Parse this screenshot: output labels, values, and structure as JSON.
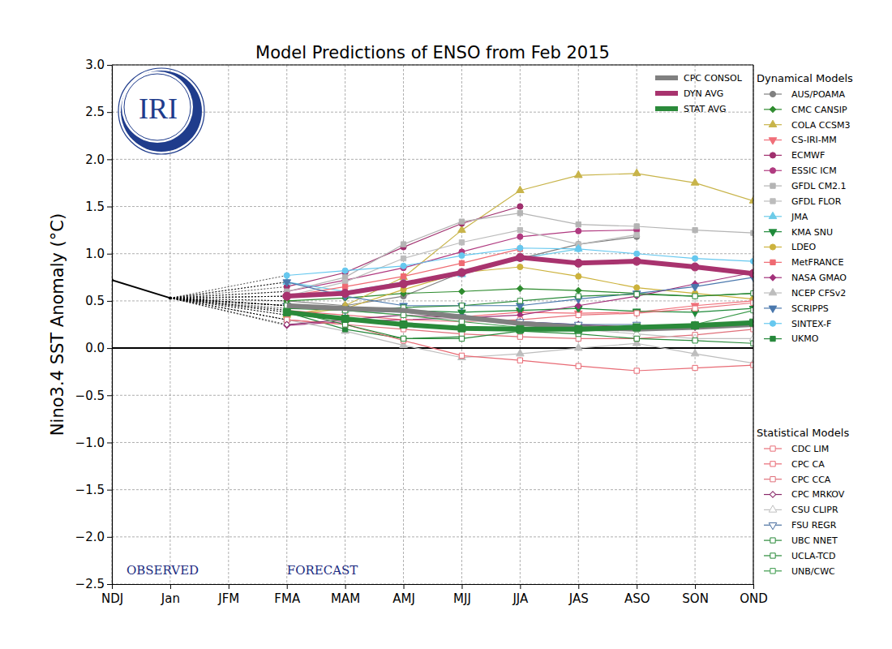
{
  "chart_data": {
    "type": "line",
    "title": "Model Predictions of ENSO from Feb 2015",
    "y_label": "Nino3.4 SST Anomaly (°C)",
    "logo_text": "IRI",
    "annotations": [
      {
        "text": "OBSERVED"
      },
      {
        "text": "FORECAST"
      }
    ],
    "categories": [
      "NDJ",
      "Jan",
      "JFM",
      "FMA",
      "MAM",
      "AMJ",
      "MJJ",
      "JJA",
      "JAS",
      "ASO",
      "SON",
      "OND"
    ],
    "ylim": [
      -2.5,
      3.0
    ],
    "yticks": [
      {
        "value": -2.5,
        "label": "−2.5"
      },
      {
        "value": -2.0,
        "label": "−2.0"
      },
      {
        "value": -1.5,
        "label": "−1.5"
      },
      {
        "value": -1.0,
        "label": "−1.0"
      },
      {
        "value": -0.5,
        "label": "−0.5"
      },
      {
        "value": 0,
        "label": "0.0"
      },
      {
        "value": 0.5,
        "label": "0.5"
      },
      {
        "value": 1.0,
        "label": "1.0"
      },
      {
        "value": 1.5,
        "label": "1.5"
      },
      {
        "value": 2.0,
        "label": "2.0"
      },
      {
        "value": 2.5,
        "label": "2.5"
      },
      {
        "value": 3.0,
        "label": "3.0"
      }
    ],
    "grid": true,
    "reference_line": 0,
    "observed": [
      0.72,
      0.53,
      null,
      null,
      null,
      null,
      null,
      null,
      null,
      null,
      null,
      null
    ],
    "series": [
      {
        "name": "CPC CONSOL",
        "color": "#808080",
        "marker": "none",
        "line_style": "bold",
        "values": [
          null,
          null,
          null,
          0.45,
          0.42,
          0.4,
          0.33,
          0.26,
          0.22,
          0.2,
          0.22,
          0.25
        ]
      },
      {
        "name": "DYN AVG",
        "color": "#a8336e",
        "marker": "circle",
        "line_style": "bold",
        "values": [
          null,
          null,
          null,
          0.55,
          0.58,
          0.68,
          0.8,
          0.96,
          0.9,
          0.92,
          0.86,
          0.79
        ]
      },
      {
        "name": "STAT AVG",
        "color": "#2a8a3a",
        "marker": "square",
        "line_style": "bold",
        "values": [
          null,
          null,
          null,
          0.38,
          0.31,
          0.25,
          0.21,
          0.2,
          0.2,
          0.22,
          0.24,
          0.27
        ]
      },
      {
        "name": "AUS/POAMA",
        "group": "Dynamical Models",
        "color": "#808080",
        "marker": "circle",
        "line_style": "solid",
        "values": [
          null,
          null,
          null,
          0.5,
          0.45,
          0.55,
          0.8,
          0.95,
          1.1,
          1.18,
          null,
          null
        ]
      },
      {
        "name": "CMC CANSIP",
        "group": "Dynamical Models",
        "color": "#2e8b2e",
        "marker": "diamond",
        "line_style": "solid",
        "values": [
          null,
          null,
          null,
          0.5,
          0.53,
          0.58,
          0.6,
          0.63,
          0.61,
          0.58,
          0.55,
          0.58
        ]
      },
      {
        "name": "COLA CCSM3",
        "group": "Dynamical Models",
        "color": "#c8b44a",
        "marker": "triangle-up",
        "line_style": "solid",
        "values": [
          null,
          null,
          null,
          0.35,
          0.45,
          0.75,
          1.25,
          1.67,
          1.83,
          1.85,
          1.75,
          1.56
        ]
      },
      {
        "name": "CS-IRI-MM",
        "group": "Dynamical Models",
        "color": "#f06e78",
        "marker": "triangle-down",
        "line_style": "solid",
        "values": [
          null,
          null,
          null,
          0.45,
          0.42,
          0.38,
          0.33,
          0.38,
          0.37,
          0.38,
          0.45,
          0.5
        ]
      },
      {
        "name": "ECMWF",
        "group": "Dynamical Models",
        "color": "#a0306e",
        "marker": "circle",
        "line_style": "solid",
        "values": [
          null,
          null,
          null,
          0.65,
          0.8,
          1.07,
          1.32,
          1.5,
          null,
          null,
          null,
          null
        ]
      },
      {
        "name": "ESSIC ICM",
        "group": "Dynamical Models",
        "color": "#b03a80",
        "marker": "circle",
        "line_style": "solid",
        "values": [
          null,
          null,
          null,
          0.6,
          0.72,
          0.85,
          1.02,
          1.18,
          1.24,
          1.25,
          null,
          null
        ]
      },
      {
        "name": "GFDL CM2.1",
        "group": "Dynamical Models",
        "color": "#b4b4b4",
        "marker": "square",
        "line_style": "solid",
        "values": [
          null,
          null,
          null,
          0.6,
          0.75,
          1.1,
          1.34,
          1.43,
          1.31,
          1.29,
          1.25,
          1.22
        ]
      },
      {
        "name": "GFDL FLOR",
        "group": "Dynamical Models",
        "color": "#bcbcbc",
        "marker": "square",
        "line_style": "solid",
        "values": [
          null,
          null,
          null,
          0.55,
          0.7,
          0.95,
          1.12,
          1.25,
          1.1,
          1.2,
          null,
          null
        ]
      },
      {
        "name": "JMA",
        "group": "Dynamical Models",
        "color": "#6ccbe8",
        "marker": "triangle-up",
        "line_style": "solid",
        "values": [
          null,
          null,
          null,
          0.7,
          0.6,
          0.7,
          0.78,
          0.95,
          1.05,
          null,
          null,
          null
        ]
      },
      {
        "name": "KMA SNU",
        "group": "Dynamical Models",
        "color": "#1f8a3a",
        "marker": "triangle-down",
        "line_style": "solid",
        "values": [
          null,
          null,
          null,
          0.45,
          0.42,
          0.4,
          0.38,
          0.4,
          0.42,
          0.39,
          0.38,
          0.42
        ]
      },
      {
        "name": "LDEO",
        "group": "Dynamical Models",
        "color": "#ccb23c",
        "marker": "circle",
        "line_style": "solid",
        "values": [
          null,
          null,
          null,
          0.35,
          0.42,
          0.62,
          0.8,
          0.86,
          0.76,
          0.64,
          0.58,
          0.52
        ]
      },
      {
        "name": "MetFRANCE",
        "group": "Dynamical Models",
        "color": "#ef6a72",
        "marker": "square",
        "line_style": "solid",
        "values": [
          null,
          null,
          null,
          0.55,
          0.65,
          0.76,
          0.9,
          1.05,
          null,
          null,
          null,
          null
        ]
      },
      {
        "name": "NASA GMAO",
        "group": "Dynamical Models",
        "color": "#a2307a",
        "marker": "diamond",
        "line_style": "solid",
        "values": [
          null,
          null,
          null,
          0.24,
          0.28,
          0.3,
          0.32,
          0.35,
          0.45,
          0.55,
          0.68,
          0.8
        ]
      },
      {
        "name": "NCEP CFSv2",
        "group": "Dynamical Models",
        "color": "#bdbdbd",
        "marker": "triangle-up",
        "line_style": "solid",
        "values": [
          null,
          null,
          null,
          0.3,
          0.18,
          0.03,
          -0.1,
          -0.06,
          0.0,
          0.05,
          -0.06,
          -0.16
        ]
      },
      {
        "name": "SCRIPPS",
        "group": "Dynamical Models",
        "color": "#4a78ad",
        "marker": "triangle-down",
        "line_style": "solid",
        "values": [
          null,
          null,
          null,
          0.7,
          0.55,
          0.45,
          0.45,
          0.45,
          0.52,
          0.58,
          0.65,
          0.75
        ]
      },
      {
        "name": "SINTEX-F",
        "group": "Dynamical Models",
        "color": "#66c8ef",
        "marker": "circle",
        "line_style": "solid",
        "values": [
          null,
          null,
          null,
          0.77,
          0.82,
          0.87,
          0.98,
          1.06,
          1.05,
          1.0,
          0.95,
          0.92
        ]
      },
      {
        "name": "UKMO",
        "group": "Dynamical Models",
        "color": "#25873a",
        "marker": "square",
        "line_style": "solid",
        "values": [
          null,
          null,
          null,
          0.38,
          0.2,
          0.1,
          0.12,
          null,
          null,
          null,
          null,
          null
        ]
      },
      {
        "name": "CDC LIM",
        "group": "Statistical Models",
        "color": "#e8707a",
        "marker": "square-open",
        "line_style": "solid",
        "values": [
          null,
          null,
          null,
          0.4,
          0.35,
          0.3,
          0.28,
          0.3,
          0.35,
          0.37,
          0.42,
          0.48
        ]
      },
      {
        "name": "CPC CA",
        "group": "Statistical Models",
        "color": "#e86a74",
        "marker": "square-open",
        "line_style": "solid",
        "values": [
          null,
          null,
          null,
          0.3,
          0.25,
          0.08,
          -0.08,
          -0.13,
          -0.19,
          -0.24,
          -0.21,
          -0.18
        ]
      },
      {
        "name": "CPC CCA",
        "group": "Statistical Models",
        "color": "#e0707a",
        "marker": "square-open",
        "line_style": "solid",
        "values": [
          null,
          null,
          null,
          0.3,
          0.25,
          0.2,
          0.15,
          0.12,
          0.1,
          0.1,
          0.14,
          0.2
        ]
      },
      {
        "name": "CPC MRKOV",
        "group": "Statistical Models",
        "color": "#8a2a6a",
        "marker": "diamond-open",
        "line_style": "solid",
        "values": [
          null,
          null,
          null,
          0.25,
          0.3,
          0.35,
          0.32,
          0.28,
          0.25,
          0.22,
          0.22,
          0.25
        ]
      },
      {
        "name": "CSU CLIPR",
        "group": "Statistical Models",
        "color": "#c0c0c0",
        "marker": "triangle-up-open",
        "line_style": "solid",
        "values": [
          null,
          null,
          null,
          0.45,
          0.4,
          0.35,
          0.3,
          0.25,
          0.2,
          0.15,
          0.1,
          0.1
        ]
      },
      {
        "name": "FSU REGR",
        "group": "Statistical Models",
        "color": "#4a6fa0",
        "marker": "triangle-down-open",
        "line_style": "solid",
        "values": [
          null,
          null,
          null,
          0.45,
          0.4,
          0.38,
          0.33,
          0.28,
          0.25,
          0.25,
          null,
          null
        ]
      },
      {
        "name": "UBC NNET",
        "group": "Statistical Models",
        "color": "#2a8a3a",
        "marker": "square-open",
        "line_style": "solid",
        "values": [
          null,
          null,
          null,
          0.42,
          0.4,
          0.43,
          0.45,
          0.5,
          0.55,
          0.57,
          0.55,
          0.58
        ]
      },
      {
        "name": "UCLA-TCD",
        "group": "Statistical Models",
        "color": "#2a8a3a",
        "marker": "square-open",
        "line_style": "solid",
        "values": [
          null,
          null,
          null,
          0.4,
          0.25,
          0.1,
          0.1,
          0.18,
          0.15,
          0.1,
          0.08,
          0.05
        ]
      },
      {
        "name": "UNB/CWC",
        "group": "Statistical Models",
        "color": "#3a9a4a",
        "marker": "square-open",
        "line_style": "solid",
        "values": [
          null,
          null,
          null,
          0.45,
          0.4,
          0.35,
          0.28,
          0.22,
          0.18,
          0.2,
          0.25,
          0.4
        ]
      }
    ]
  }
}
